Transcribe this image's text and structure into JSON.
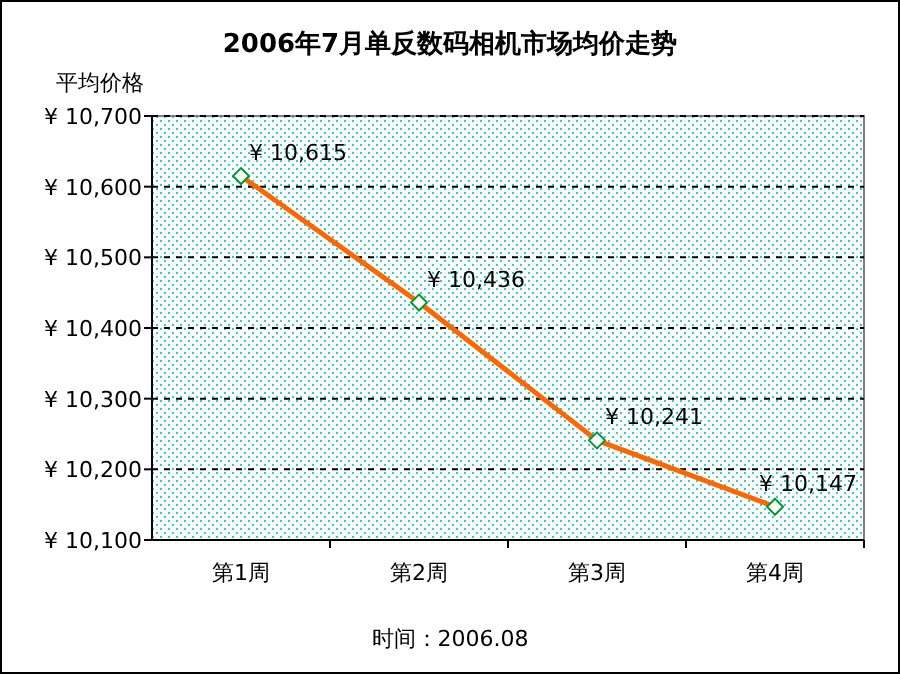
{
  "chart_data": {
    "type": "line",
    "title": "2006年7月单反数码相机市场均价走势",
    "ylabel": "平均价格",
    "categories": [
      "第1周",
      "第2周",
      "第3周",
      "第4周"
    ],
    "values": [
      10615,
      10436,
      10241,
      10147
    ],
    "value_labels": [
      "¥ 10,615",
      "¥ 10,436",
      "¥ 10,241",
      "¥ 10,147"
    ],
    "color": "#ff6600",
    "marker": "diamond",
    "grid": "y",
    "ylim": [
      10100,
      10700
    ],
    "yticks": [
      {
        "value": 10100,
        "label": "¥ 10,100"
      },
      {
        "value": 10200,
        "label": "¥ 10,200"
      },
      {
        "value": 10300,
        "label": "¥ 10,300"
      },
      {
        "value": 10400,
        "label": "¥ 10,400"
      },
      {
        "value": 10500,
        "label": "¥ 10,500"
      },
      {
        "value": 10600,
        "label": "¥ 10,600"
      },
      {
        "value": 10700,
        "label": "¥ 10,700"
      }
    ],
    "annotations": [
      "时间：2006.08"
    ]
  }
}
